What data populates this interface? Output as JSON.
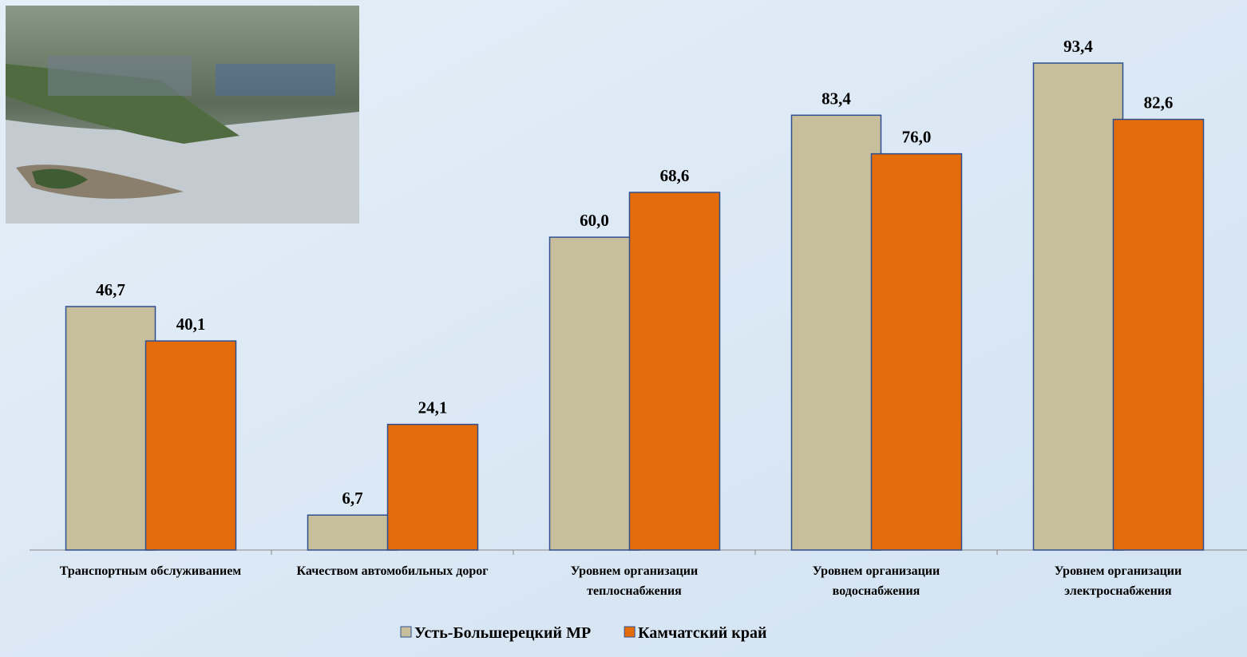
{
  "chart_data": {
    "type": "bar",
    "categories": [
      "Транспортным обслуживанием",
      "Качеством автомобильных дорог",
      "Уровнем организации теплоснабжения",
      "Уровнем организации водоснабжения",
      "Уровнем организации электроснабжения"
    ],
    "series": [
      {
        "name": "Усть-Большерецкий МР",
        "color": "#c7bf9b",
        "values": [
          46.7,
          6.7,
          60.0,
          83.4,
          93.4
        ],
        "value_labels": [
          "46,7",
          "6,7",
          "60,0",
          "83,4",
          "93,4"
        ]
      },
      {
        "name": "Камчатский край",
        "color": "#e46c0a",
        "values": [
          40.1,
          24.1,
          68.6,
          76.0,
          82.6
        ],
        "value_labels": [
          "40,1",
          "24,1",
          "68,6",
          "76,0",
          "82,6"
        ]
      }
    ],
    "legend": "bottom"
  }
}
